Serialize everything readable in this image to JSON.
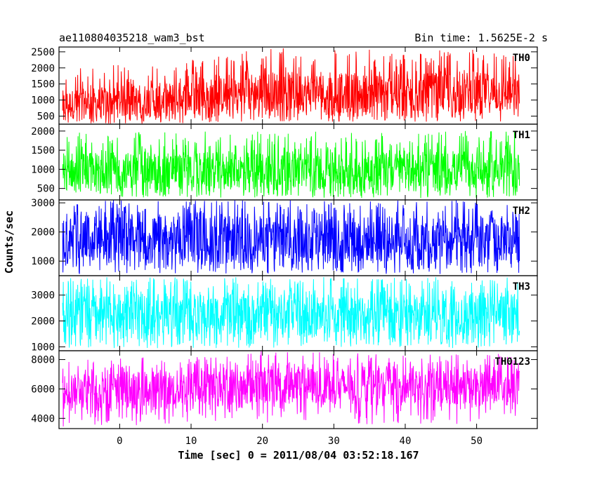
{
  "header": {
    "left": "ae110804035218_wam3_bst",
    "right": "Bin time: 1.5625E-2 s"
  },
  "chart_data": {
    "type": "line",
    "title": "ae110804035218_wam3_bst",
    "subtitle": "Bin time: 1.5625E-2 s",
    "xlabel": "Time [sec] 0 = 2011/08/04 03:52:18.167",
    "ylabel": "Counts/sec",
    "xlim": [
      -8.5,
      58.5
    ],
    "x_range_data": [
      -8,
      56
    ],
    "x_ticks": [
      0,
      10,
      20,
      30,
      40,
      50
    ],
    "grid": false,
    "legend": "none",
    "panels": [
      {
        "name": "TH0",
        "color": "#ff0000",
        "ylim": [
          250,
          2650
        ],
        "y_ticks": [
          500,
          1000,
          1500,
          2000,
          2500
        ],
        "band": {
          "x": [
            -8,
            0,
            10,
            20,
            30,
            40,
            50,
            56
          ],
          "low": [
            400,
            450,
            500,
            650,
            600,
            550,
            600,
            600
          ],
          "high": [
            1300,
            1450,
            1600,
            1900,
            1850,
            1800,
            1900,
            1700
          ],
          "spike_high": [
            2000,
            2100,
            2300,
            2650,
            2650,
            2500,
            2650,
            2400
          ],
          "spike_low": [
            250,
            260,
            280,
            350,
            300,
            300,
            320,
            300
          ]
        }
      },
      {
        "name": "TH1",
        "color": "#00ff00",
        "ylim": [
          200,
          2180
        ],
        "y_ticks": [
          500,
          1000,
          1500,
          2000
        ],
        "band": {
          "x": [
            -8,
            56
          ],
          "low": [
            500,
            500
          ],
          "high": [
            1450,
            1450
          ],
          "spike_high": [
            2000,
            2000
          ],
          "spike_low": [
            250,
            250
          ]
        }
      },
      {
        "name": "TH2",
        "color": "#0000ff",
        "ylim": [
          500,
          3100
        ],
        "y_ticks": [
          1000,
          2000,
          3000
        ],
        "band": {
          "x": [
            -8,
            56
          ],
          "low": [
            950,
            950
          ],
          "high": [
            2550,
            2550
          ],
          "spike_high": [
            3100,
            3100
          ],
          "spike_low": [
            550,
            550
          ]
        }
      },
      {
        "name": "TH3",
        "color": "#00ffff",
        "ylim": [
          850,
          3750
        ],
        "y_ticks": [
          1000,
          2000,
          3000
        ],
        "band": {
          "x": [
            -8,
            56
          ],
          "low": [
            1450,
            1450
          ],
          "high": [
            3050,
            3050
          ],
          "spike_high": [
            3700,
            3700
          ],
          "spike_low": [
            950,
            950
          ]
        }
      },
      {
        "name": "TH0123",
        "color": "#ff00ff",
        "ylim": [
          3300,
          8600
        ],
        "y_ticks": [
          4000,
          6000,
          8000
        ],
        "band": {
          "x": [
            -8,
            0,
            10,
            20,
            30,
            40,
            50,
            56
          ],
          "low": [
            4600,
            4700,
            4800,
            5000,
            4900,
            4900,
            4900,
            4900
          ],
          "high": [
            7000,
            7200,
            7300,
            7600,
            7500,
            7400,
            7500,
            7400
          ],
          "spike_high": [
            8000,
            8100,
            8300,
            8600,
            8500,
            8300,
            8500,
            8300
          ],
          "spike_low": [
            3400,
            3500,
            3600,
            3700,
            3600,
            3600,
            3600,
            3600
          ]
        }
      }
    ]
  }
}
